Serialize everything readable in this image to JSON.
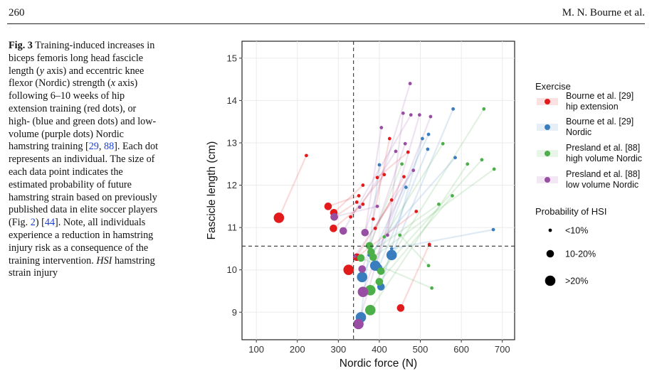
{
  "header": {
    "page_number": "260",
    "running_head": "M. N. Bourne et al."
  },
  "caption": {
    "label": "Fig. 3",
    "t1": " Training-induced increases in biceps femoris long head fascicle length (",
    "t2": "y",
    "t3": " axis) and eccentric knee flexor (Nordic) strength (",
    "t4": "x",
    "t5": " axis) following 6–10 weeks of hip extension training (red dots), or high- (blue and green dots) and low-volume (purple dots) Nordic hamstring training [",
    "ref1": "29",
    "t6": ", ",
    "ref2": "88",
    "t7": "]. Each dot represents an individual. The size of each data point indicates the estimated probability of future hamstring strain based on previously published data in elite soccer players (Fig. ",
    "ref3": "2",
    "t8": ") [",
    "ref4": "44",
    "t9": "]. Note, all individuals experience a reduction in hamstring injury risk as a consequence of the training intervention. ",
    "abbr": "HSI",
    "t10": " hamstring strain injury"
  },
  "chart_data": {
    "type": "scatter",
    "xlabel": "Nordic force (N)",
    "ylabel": "Fascicle length (cm)",
    "xlim": [
      65,
      730
    ],
    "ylim": [
      8.35,
      15.4
    ],
    "xticks": [
      100,
      200,
      300,
      400,
      500,
      600,
      700
    ],
    "yticks": [
      9,
      10,
      11,
      12,
      13,
      14,
      15
    ],
    "grid": true,
    "reference_lines": {
      "x": 337,
      "y": 10.56
    },
    "legend": {
      "placement": "right",
      "exercise_title": "Exercise",
      "probability_title": "Probability of HSI",
      "size_labels": [
        "<10%",
        "10-20%",
        ">20%"
      ]
    },
    "series": [
      {
        "name": "Bourne et al. [29] hip extension",
        "legend_line1": "Bourne et al. [29]",
        "legend_line2": "hip extension",
        "color": "#e31a1c",
        "pairs": [
          [
            155,
            11.23,
            222,
            12.7,
            3
          ],
          [
            275,
            11.5,
            350,
            11.75,
            2
          ],
          [
            289,
            11.35,
            360,
            12.0,
            2
          ],
          [
            290,
            11.25,
            345,
            11.6,
            2
          ],
          [
            288,
            10.98,
            360,
            11.55,
            2
          ],
          [
            325,
            10.0,
            430,
            11.65,
            3
          ],
          [
            330,
            11.25,
            412,
            12.25,
            1
          ],
          [
            345,
            10.3,
            490,
            11.38,
            2
          ],
          [
            385,
            11.2,
            425,
            13.1,
            1
          ],
          [
            390,
            10.98,
            460,
            12.2,
            1
          ],
          [
            395,
            12.18,
            470,
            12.78,
            1
          ],
          [
            452,
            9.1,
            522,
            10.6,
            2
          ]
        ]
      },
      {
        "name": "Bourne et al. [29] Nordic",
        "legend_line1": "Bourne et al. [29]",
        "legend_line2": "Nordic",
        "color": "#3a7dbf",
        "pairs": [
          [
            355,
            8.88,
            400,
            12.48,
            3
          ],
          [
            358,
            9.83,
            520,
            13.2,
            3
          ],
          [
            390,
            10.1,
            465,
            11.95,
            3
          ],
          [
            430,
            10.35,
            580,
            13.8,
            3
          ],
          [
            398,
            10.05,
            518,
            12.85,
            2
          ],
          [
            404,
            9.6,
            505,
            13.1,
            2
          ],
          [
            375,
            10.35,
            585,
            12.65,
            1
          ],
          [
            430,
            10.5,
            678,
            10.95,
            1
          ]
        ]
      },
      {
        "name": "Presland et al. [88] high volume Nordic",
        "legend_line1": "Presland et al. [88]",
        "legend_line2": "high volume Nordic",
        "color": "#4daf4a",
        "pairs": [
          [
            378,
            9.05,
            615,
            12.5,
            3
          ],
          [
            378,
            9.52,
            655,
            13.8,
            3
          ],
          [
            376,
            10.57,
            455,
            12.5,
            2
          ],
          [
            380,
            10.42,
            545,
            11.55,
            2
          ],
          [
            385,
            10.3,
            680,
            12.38,
            2
          ],
          [
            400,
            9.72,
            578,
            11.75,
            2
          ],
          [
            404,
            9.97,
            650,
            12.6,
            2
          ],
          [
            355,
            10.28,
            528,
            9.57,
            2
          ],
          [
            412,
            10.78,
            555,
            12.98,
            1
          ],
          [
            450,
            10.82,
            520,
            10.1,
            1
          ]
        ]
      },
      {
        "name": "Presland et al. [88] low volume Nordic",
        "legend_line1": "Presland et al. [88]",
        "legend_line2": "low volume Nordic",
        "color": "#984ea3",
        "pairs": [
          [
            349,
            8.72,
            498,
            13.66,
            3
          ],
          [
            360,
            9.48,
            525,
            13.62,
            3
          ],
          [
            290,
            11.25,
            395,
            11.5,
            2
          ],
          [
            312,
            10.92,
            477,
            13.66,
            2
          ],
          [
            365,
            10.88,
            475,
            14.4,
            2
          ],
          [
            358,
            10.02,
            463,
            12.98,
            2
          ],
          [
            340,
            10.32,
            483,
            12.35,
            1
          ],
          [
            365,
            10.87,
            405,
            13.36,
            1
          ],
          [
            420,
            10.82,
            458,
            13.7,
            1
          ],
          [
            352,
            11.48,
            440,
            12.8,
            1
          ]
        ]
      }
    ]
  }
}
